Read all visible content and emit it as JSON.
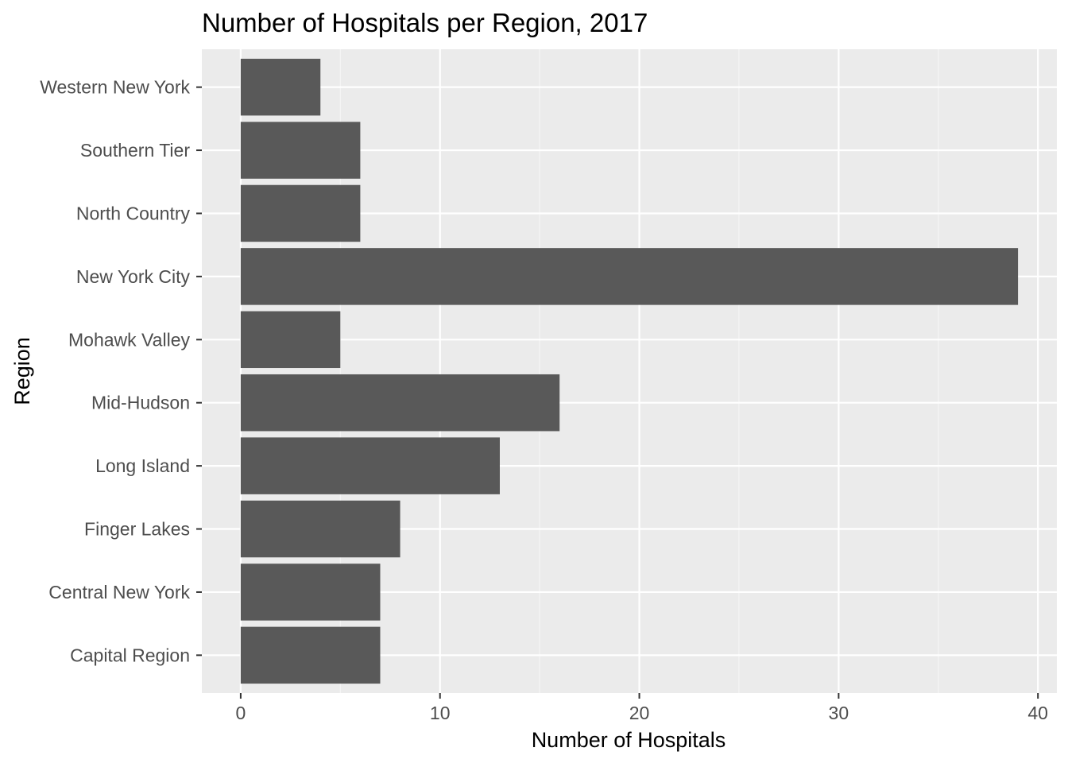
{
  "chart_data": {
    "type": "bar",
    "orientation": "horizontal",
    "title": "Number of Hospitals per Region, 2017",
    "xlabel": "Number of Hospitals",
    "ylabel": "Region",
    "categories": [
      "Capital Region",
      "Central New York",
      "Finger Lakes",
      "Long Island",
      "Mid-Hudson",
      "Mohawk Valley",
      "New York City",
      "North Country",
      "Southern Tier",
      "Western New York"
    ],
    "values": [
      7,
      7,
      8,
      13,
      16,
      5,
      39,
      6,
      6,
      4
    ],
    "xlim": [
      -1.95,
      40.95
    ],
    "xticks": [
      0,
      10,
      20,
      30,
      40
    ],
    "grid": true,
    "colors": {
      "bar": "#595959",
      "panel_background": "#ebebeb",
      "grid_major": "#ffffff",
      "grid_minor": "#f5f5f5",
      "tick_label": "#4d4d4d",
      "tick_mark": "#333333",
      "text": "#000000"
    }
  }
}
